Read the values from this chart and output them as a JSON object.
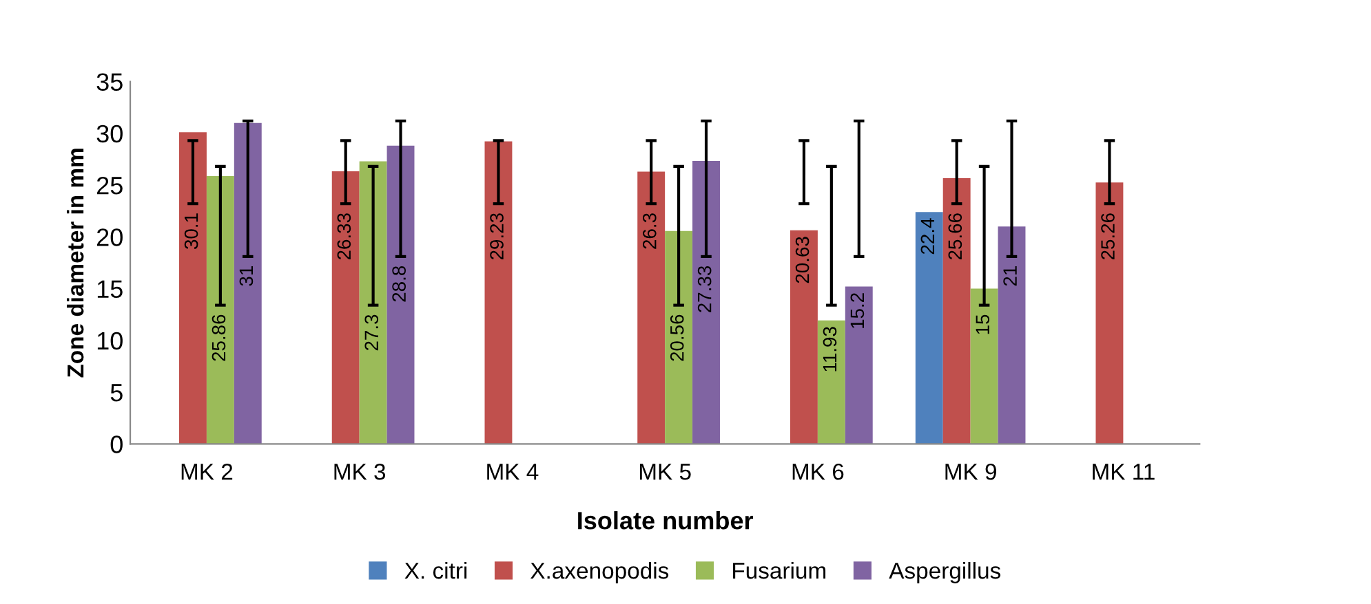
{
  "chart_data": {
    "type": "bar",
    "xlabel": "Isolate number",
    "ylabel": "Zone diameter in mm",
    "categories": [
      "MK 2",
      "MK 3",
      "MK 4",
      "MK 5",
      "MK 6",
      "MK 9",
      "MK 11"
    ],
    "series": [
      {
        "name": "X. citri",
        "color": "#4f81bd",
        "values": [
          null,
          null,
          null,
          null,
          null,
          22.4,
          null
        ]
      },
      {
        "name": "X.axenopodis",
        "color": "#c0504d",
        "values": [
          30.1,
          26.33,
          29.23,
          26.3,
          20.63,
          25.66,
          25.26
        ],
        "errors": [
          [
            23.2,
            29.3
          ],
          [
            23.2,
            29.3
          ],
          [
            23.2,
            29.3
          ],
          [
            23.2,
            29.3
          ],
          [
            23.2,
            29.3
          ],
          [
            23.2,
            29.3
          ],
          [
            23.2,
            29.3
          ]
        ]
      },
      {
        "name": "Fusarium",
        "color": "#9bbb59",
        "values": [
          25.86,
          27.3,
          null,
          20.56,
          11.93,
          15,
          null
        ],
        "errors": [
          [
            13.4,
            26.8
          ],
          [
            13.4,
            26.8
          ],
          null,
          [
            13.4,
            26.8
          ],
          [
            13.4,
            26.8
          ],
          [
            13.4,
            26.8
          ],
          null
        ]
      },
      {
        "name": "Aspergillus",
        "color": "#8064a2",
        "values": [
          31,
          28.8,
          null,
          27.33,
          15.2,
          21,
          null
        ],
        "errors": [
          [
            18.1,
            31.2
          ],
          [
            18.1,
            31.2
          ],
          null,
          [
            18.1,
            31.2
          ],
          [
            18.1,
            31.2
          ],
          [
            18.1,
            31.2
          ],
          null
        ]
      }
    ],
    "ylim": [
      0,
      35
    ],
    "yticks": [
      0,
      5,
      10,
      15,
      20,
      25,
      30,
      35
    ],
    "grid": false,
    "legend": "bottom",
    "data_labels": true
  }
}
